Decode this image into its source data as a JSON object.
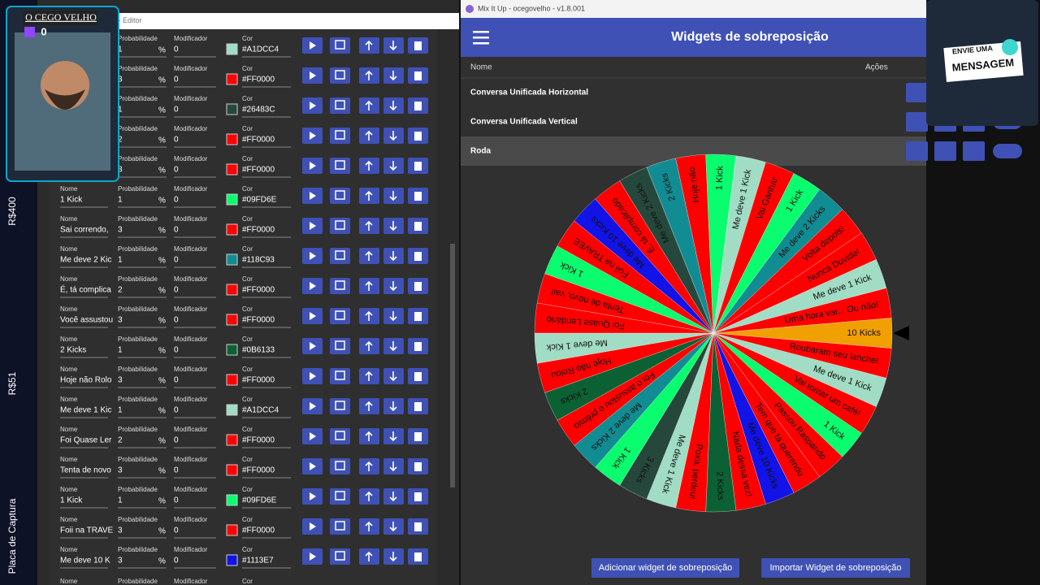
{
  "sidebar": {
    "labels": [
      "R$400",
      "R$51",
      "Placa de Captura"
    ]
  },
  "webcam": {
    "name": "O CEGO VELHO",
    "count": "0"
  },
  "editor": {
    "title": "lo - Editor",
    "field_labels": {
      "name": "Nome",
      "probability": "Probabilidade",
      "modifier": "Modificador",
      "color": "Cor"
    },
    "percent": "%",
    "rows": [
      {
        "probability": "1",
        "modifier": "0",
        "color": "#A1DCC4"
      },
      {
        "probability": "3",
        "modifier": "0",
        "color": "#FF0000"
      },
      {
        "probability": "1",
        "modifier": "0",
        "color": "#26483C"
      },
      {
        "probability": "2",
        "modifier": "0",
        "color": "#FF0000"
      },
      {
        "probability": "3",
        "modifier": "0",
        "color": "#FF0000"
      },
      {
        "name": "1 Kick",
        "probability": "1",
        "modifier": "0",
        "color": "#09FD6E"
      },
      {
        "name": "Sai correndo,",
        "probability": "3",
        "modifier": "0",
        "color": "#FF0000"
      },
      {
        "name": "Me deve 2 Kic",
        "probability": "1",
        "modifier": "0",
        "color": "#118C93"
      },
      {
        "name": "É, tá complica",
        "probability": "2",
        "modifier": "0",
        "color": "#FF0000"
      },
      {
        "name": "Você assustou",
        "probability": "3",
        "modifier": "0",
        "color": "#FF0000"
      },
      {
        "name": "2 Kicks",
        "probability": "1",
        "modifier": "0",
        "color": "#0B6133"
      },
      {
        "name": "Hoje não Rolo",
        "probability": "3",
        "modifier": "0",
        "color": "#FF0000"
      },
      {
        "name": "Me deve 1 Kic",
        "probability": "1",
        "modifier": "0",
        "color": "#A1DCC4"
      },
      {
        "name": "Foi Quase Ler",
        "probability": "2",
        "modifier": "0",
        "color": "#FF0000"
      },
      {
        "name": "Tenta de novo",
        "probability": "3",
        "modifier": "0",
        "color": "#FF0000"
      },
      {
        "name": "1 Kick",
        "probability": "1",
        "modifier": "0",
        "color": "#09FD6E"
      },
      {
        "name": "Foii na TRAVE",
        "probability": "3",
        "modifier": "0",
        "color": "#FF0000"
      },
      {
        "name": "Me deve 10 K",
        "probability": "3",
        "modifier": "0",
        "color": "#1113E7"
      }
    ]
  },
  "app": {
    "title": "Mix It Up - ocegovelho - v1.8.001",
    "header": "Widgets de sobreposição",
    "columns": [
      "Nome",
      "Ações"
    ],
    "widgets": [
      "Conversa Unificada Horizontal",
      "Conversa Unificada Vertical",
      "Roda"
    ],
    "buttons": [
      "Adicionar widget de sobreposição",
      "Importar Widget de sobreposição"
    ]
  },
  "wheel": {
    "segments": [
      {
        "label": "10 Kicks",
        "color": "#F0A000"
      },
      {
        "label": "Roubaram seu lanche!",
        "color": "#FF0000"
      },
      {
        "label": "Me deve 1 Kick",
        "color": "#A1DCC4"
      },
      {
        "label": "Vai tomar um café!",
        "color": "#FF0000"
      },
      {
        "label": "1 Kick",
        "color": "#09FD6E"
      },
      {
        "label": "Passou Raspando",
        "color": "#FF0000"
      },
      {
        "label": "Tem que ta querendo",
        "color": "#FF0000"
      },
      {
        "label": "Me deve 10 Kicks",
        "color": "#1113E7"
      },
      {
        "label": "Nada dessa vez!",
        "color": "#FF0000"
      },
      {
        "label": "2 Kicks",
        "color": "#0B6133"
      },
      {
        "label": "Poxa, perdeu!",
        "color": "#FF0000"
      },
      {
        "label": "Me deve 1 Kick",
        "color": "#A1DCC4"
      },
      {
        "label": "3 Kicks",
        "color": "#26483C"
      },
      {
        "label": "1 Kick",
        "color": "#09FD6E"
      },
      {
        "label": "Me deve 2 Kicks",
        "color": "#118C93"
      },
      {
        "label": "Foi o assustou o prêmio",
        "color": "#FF0000"
      },
      {
        "label": "2 Kicks",
        "color": "#0B6133"
      },
      {
        "label": "Hoje não Rolou",
        "color": "#FF0000"
      },
      {
        "label": "Me deve 1 Kick",
        "color": "#A1DCC4"
      },
      {
        "label": "Foi Quase Lendário",
        "color": "#FF0000"
      },
      {
        "label": "Tenta de novo, vai!",
        "color": "#FF0000"
      },
      {
        "label": "1 Kick",
        "color": "#09FD6E"
      },
      {
        "label": "Foii na TRAVEE",
        "color": "#FF0000"
      },
      {
        "label": "Me deve 10 Kicks",
        "color": "#1113E7"
      },
      {
        "label": "É, tá complicado",
        "color": "#FF0000"
      },
      {
        "label": "Me deve 2 Kicks",
        "color": "#26483C"
      },
      {
        "label": "2 Kicks",
        "color": "#118C93"
      },
      {
        "label": "Hoje não",
        "color": "#FF0000"
      },
      {
        "label": "1 Kick",
        "color": "#09FD6E"
      },
      {
        "label": "Me deve 1 Kick",
        "color": "#A1DCC4"
      },
      {
        "label": "Vai Ganhar",
        "color": "#FF0000"
      },
      {
        "label": "1 Kick",
        "color": "#09FD6E"
      },
      {
        "label": "Me deve 2 Kicks",
        "color": "#118C93"
      },
      {
        "label": "Volta depois!",
        "color": "#FF0000"
      },
      {
        "label": "Nunca Duvide!",
        "color": "#FF0000"
      },
      {
        "label": "Me deve 1 Kick",
        "color": "#A1DCC4"
      },
      {
        "label": "Uma hora vai... Ou não!",
        "color": "#FF0000"
      }
    ]
  },
  "overlay": {
    "line1": "ENVIE UMA",
    "line2": "MENSAGEM"
  }
}
